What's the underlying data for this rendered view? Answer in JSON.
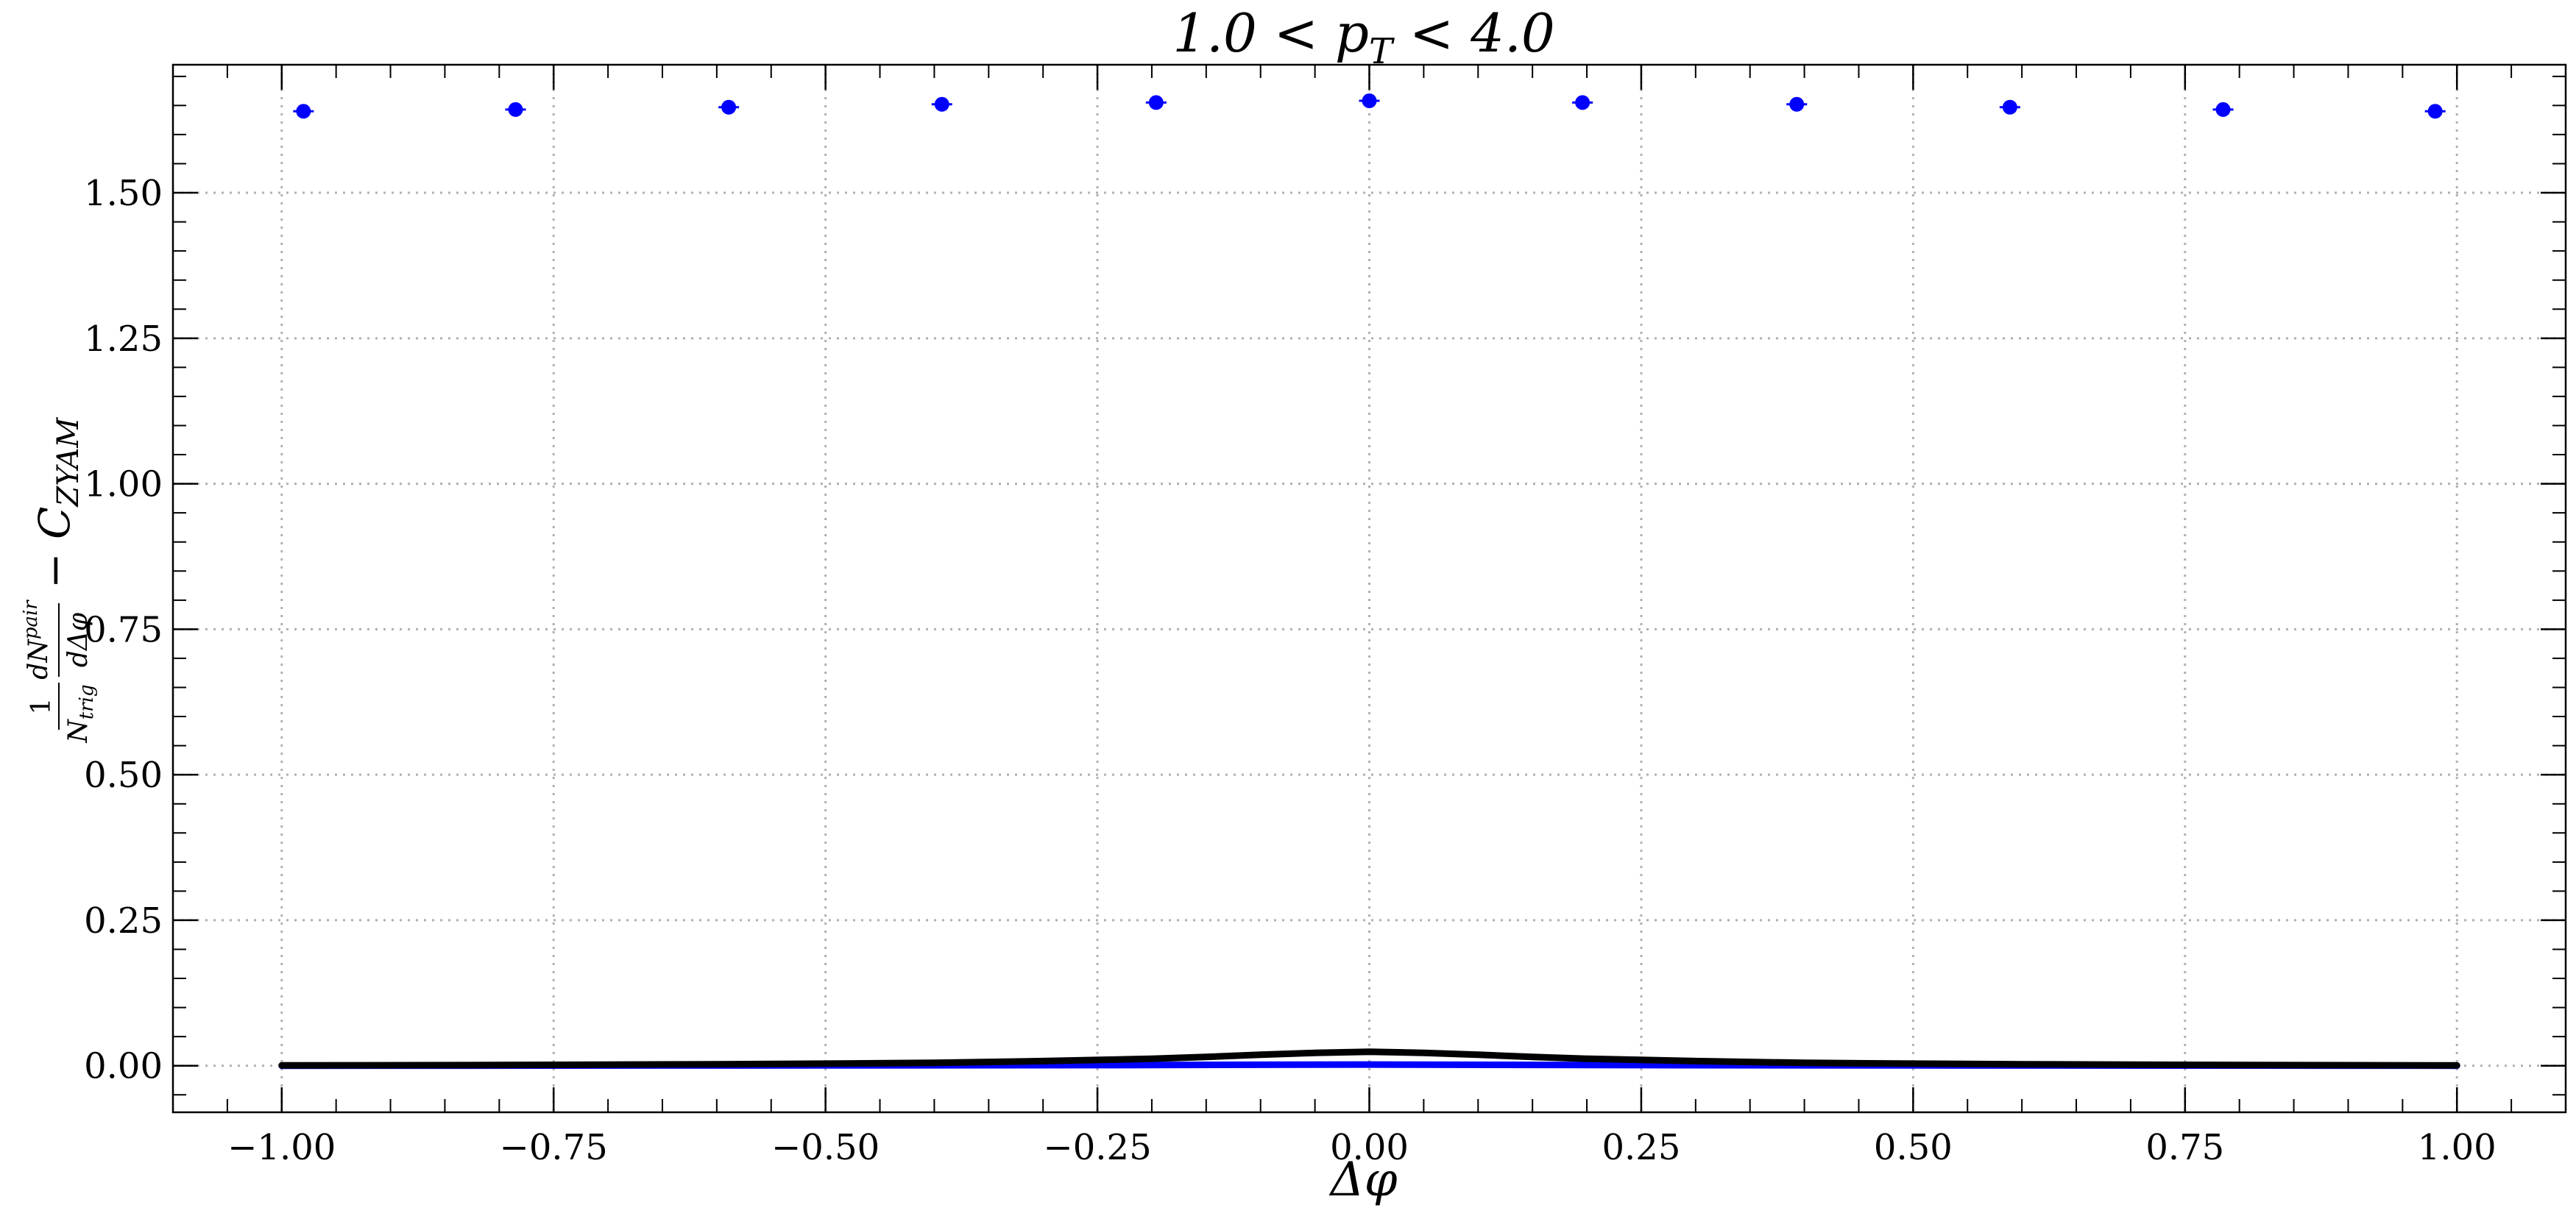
{
  "chart_data": {
    "type": "scatter",
    "title": "1.0 < pT < 4.0",
    "title_parts": {
      "prefix": "1.0 < p",
      "subscript": "T",
      "suffix": " < 4.0"
    },
    "xlabel": "Δφ",
    "ylabel": "(1/N_trig) dN^pair/dΔφ − C_ZYAM",
    "ylabel_parts": {
      "frac1_num": "1",
      "frac1_den": "N",
      "frac1_den_sub": "trig",
      "frac2_num": "dN",
      "frac2_num_sup": "pair",
      "frac2_den": "dΔφ",
      "minus_term": "− C",
      "minus_sub": "ZYAM"
    },
    "xlim": [
      -1.1,
      1.1
    ],
    "ylim": [
      -0.08,
      1.72
    ],
    "grid": true,
    "x_ticks": [
      -1.0,
      -0.75,
      -0.5,
      -0.25,
      0.0,
      0.25,
      0.5,
      0.75,
      1.0
    ],
    "x_tick_labels": [
      "−1.00",
      "−0.75",
      "−0.50",
      "−0.25",
      "0.00",
      "0.25",
      "0.50",
      "0.75",
      "1.00"
    ],
    "y_ticks": [
      0.0,
      0.25,
      0.5,
      0.75,
      1.0,
      1.25,
      1.5
    ],
    "y_tick_labels": [
      "0.00",
      "0.25",
      "0.50",
      "0.75",
      "1.00",
      "1.25",
      "1.50"
    ],
    "series": [
      {
        "name": "data points",
        "kind": "errorbar",
        "color": "#0000ff",
        "x": [
          -0.98,
          -0.785,
          -0.589,
          -0.393,
          -0.196,
          0.0,
          0.196,
          0.393,
          0.589,
          0.785,
          0.98
        ],
        "y": [
          1.64,
          1.643,
          1.647,
          1.652,
          1.655,
          1.658,
          1.655,
          1.652,
          1.647,
          1.643,
          1.64
        ],
        "yerr": [
          0.01,
          0.01,
          0.01,
          0.01,
          0.01,
          0.01,
          0.01,
          0.01,
          0.01,
          0.01,
          0.01
        ]
      },
      {
        "name": "blue baseline",
        "kind": "line",
        "color": "#0000ff",
        "x": [
          -1.0,
          -0.5,
          -0.25,
          0.0,
          0.25,
          0.5,
          1.0
        ],
        "y": [
          0.0,
          0.0005,
          0.001,
          0.002,
          0.001,
          0.0005,
          0.0
        ]
      },
      {
        "name": "black fit",
        "kind": "line",
        "color": "#000000",
        "x": [
          -1.0,
          -0.8,
          -0.6,
          -0.5,
          -0.4,
          -0.3,
          -0.2,
          -0.15,
          -0.1,
          -0.05,
          0.0,
          0.05,
          0.1,
          0.15,
          0.2,
          0.3,
          0.4,
          0.5,
          0.6,
          0.8,
          1.0
        ],
        "y": [
          0.0005,
          0.0012,
          0.0025,
          0.0035,
          0.005,
          0.008,
          0.012,
          0.015,
          0.019,
          0.022,
          0.024,
          0.022,
          0.019,
          0.015,
          0.012,
          0.008,
          0.005,
          0.0035,
          0.0025,
          0.0012,
          0.0005
        ]
      }
    ]
  }
}
